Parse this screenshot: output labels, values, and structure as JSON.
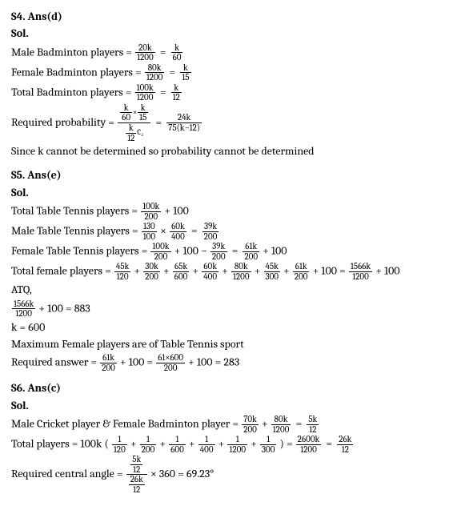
{
  "s4": {
    "header": "S4. Ans(d)",
    "sol": "Sol.",
    "l1_label": "Male Badminton players = ",
    "l1_f1": {
      "n": "20k",
      "d": "1200"
    },
    "l1_f2": {
      "n": "k",
      "d": "60"
    },
    "l2_label": "Female Badminton players = ",
    "l2_f1": {
      "n": "80k",
      "d": "1200"
    },
    "l2_f2": {
      "n": "k",
      "d": "15"
    },
    "l3_label": "Total Badminton players = ",
    "l3_f1": {
      "n": "100k",
      "d": "1200"
    },
    "l3_f2": {
      "n": "k",
      "d": "12"
    },
    "l4_label": "Required probability = ",
    "l4_big_num_left": {
      "n": "k",
      "d": "60"
    },
    "l4_big_num_mid": "×",
    "l4_big_num_right": {
      "n": "k",
      "d": "15"
    },
    "l4_big_den_left": {
      "n": "k",
      "d": "12"
    },
    "l4_big_den_right": "C₂",
    "l4_f2": {
      "n": "24k",
      "d": "75(k−12)"
    },
    "l5": "Since k cannot be determined so probability cannot be determined"
  },
  "s5": {
    "header": "S5. Ans(e)",
    "sol": "Sol.",
    "l1_label": "Total Table Tennis players = ",
    "l1_f1": {
      "n": "100k",
      "d": "200"
    },
    "l1_tail": " + 100",
    "l2_label": "Male Table Tennis players = ",
    "l2_f1": {
      "n": "130",
      "d": "100"
    },
    "l2_mid": "×",
    "l2_f2": {
      "n": "60k",
      "d": "400"
    },
    "l2_f3": {
      "n": "39k",
      "d": "200"
    },
    "l3_label": "Female Table Tennis players = ",
    "l3_f1": {
      "n": "100k",
      "d": "200"
    },
    "l3_mid1": " + 100 − ",
    "l3_f2": {
      "n": "39k",
      "d": "200"
    },
    "l3_f3": {
      "n": "61k",
      "d": "200"
    },
    "l3_tail": " + 100",
    "l4_label": "Total female players = ",
    "l4_f1": {
      "n": "45k",
      "d": "120"
    },
    "l4_f2": {
      "n": "30k",
      "d": "200"
    },
    "l4_f3": {
      "n": "65k",
      "d": "600"
    },
    "l4_f4": {
      "n": "60k",
      "d": "400"
    },
    "l4_f5": {
      "n": "80k",
      "d": "1200"
    },
    "l4_f6": {
      "n": "45k",
      "d": "300"
    },
    "l4_f7": {
      "n": "61k",
      "d": "200"
    },
    "l4_mid": " + 100 = ",
    "l4_f8": {
      "n": "1566k",
      "d": "1200"
    },
    "l4_tail": " + 100",
    "l5": "ATQ,",
    "l6_f1": {
      "n": "1566k",
      "d": "1200"
    },
    "l6_tail": " + 100 = 883",
    "l7": "k = 600",
    "l8": "Maximum Female players are of Table Tennis sport",
    "l9_label": "Required answer = ",
    "l9_f1": {
      "n": "61k",
      "d": "200"
    },
    "l9_mid": " + 100 = ",
    "l9_f2": {
      "n": "61×600",
      "d": "200"
    },
    "l9_tail": " + 100 = 283"
  },
  "s6": {
    "header": "S6. Ans(c)",
    "sol": "Sol.",
    "l1_label": "Male Cricket player & Female Badminton player = ",
    "l1_f1": {
      "n": "70k",
      "d": "200"
    },
    "l1_plus": " + ",
    "l1_f2": {
      "n": "80k",
      "d": "1200"
    },
    "l1_f3": {
      "n": "5k",
      "d": "12"
    },
    "l2_label": "Total players = 100k (",
    "l2_f1": {
      "n": "1",
      "d": "120"
    },
    "l2_f2": {
      "n": "1",
      "d": "200"
    },
    "l2_f3": {
      "n": "1",
      "d": "600"
    },
    "l2_f4": {
      "n": "1",
      "d": "400"
    },
    "l2_f5": {
      "n": "1",
      "d": "1200"
    },
    "l2_f6": {
      "n": "1",
      "d": "300"
    },
    "l2_mid": ") = ",
    "l2_f7": {
      "n": "2600k",
      "d": "1200"
    },
    "l2_f8": {
      "n": "26k",
      "d": "12"
    },
    "l3_label": "Required central angle = ",
    "l3_big_num": {
      "n": "5k",
      "d": "12"
    },
    "l3_big_den": {
      "n": "26k",
      "d": "12"
    },
    "l3_tail": " × 360 = 69.23°"
  }
}
